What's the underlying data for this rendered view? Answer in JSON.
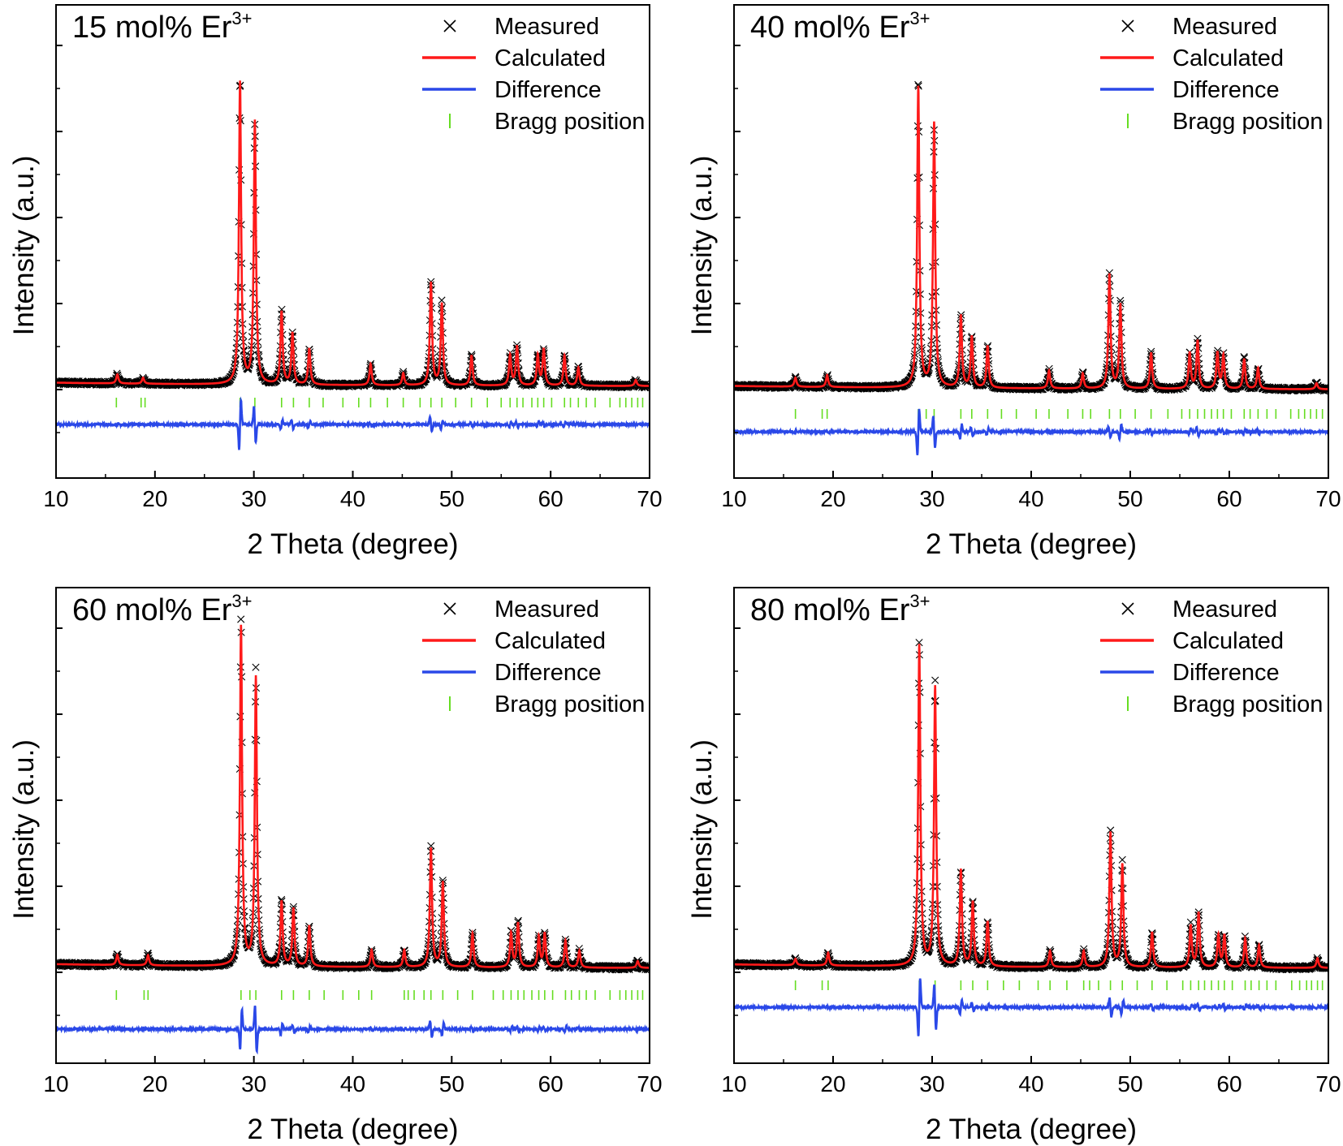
{
  "colors": {
    "measured": "#000000",
    "calculated": "#ff1a1a",
    "difference": "#2a48e8",
    "bragg": "#66dd22",
    "axis": "#000000"
  },
  "chart_data": [
    {
      "type": "line",
      "panel": "top-left",
      "title": "15 mol% Er",
      "title_sup": "3+",
      "xlabel": "2 Theta (degree)",
      "ylabel": "Intensity (a.u.)",
      "xlim": [
        10,
        70
      ],
      "xticks": [
        "10",
        "20",
        "30",
        "40",
        "50",
        "60",
        "70"
      ],
      "yticks_shown": false,
      "legend_position": "top-right",
      "legend": [
        "Measured",
        "Calculated",
        "Difference",
        "Bragg position"
      ],
      "series": [
        {
          "name": "Measured",
          "style": "markers-x"
        },
        {
          "name": "Calculated",
          "style": "line"
        },
        {
          "name": "Difference",
          "style": "line"
        },
        {
          "name": "Bragg position",
          "style": "ticks"
        }
      ],
      "peaks": [
        {
          "x": 16.2,
          "h": 0.03
        },
        {
          "x": 18.8,
          "h": 0.02
        },
        {
          "x": 28.6,
          "h": 1.0
        },
        {
          "x": 30.1,
          "h": 0.87
        },
        {
          "x": 32.8,
          "h": 0.24
        },
        {
          "x": 33.9,
          "h": 0.17
        },
        {
          "x": 35.6,
          "h": 0.12
        },
        {
          "x": 41.8,
          "h": 0.07
        },
        {
          "x": 45.1,
          "h": 0.04
        },
        {
          "x": 47.9,
          "h": 0.34
        },
        {
          "x": 49.0,
          "h": 0.27
        },
        {
          "x": 52.0,
          "h": 0.1
        },
        {
          "x": 55.9,
          "h": 0.1
        },
        {
          "x": 56.6,
          "h": 0.13
        },
        {
          "x": 58.7,
          "h": 0.1
        },
        {
          "x": 59.3,
          "h": 0.12
        },
        {
          "x": 61.4,
          "h": 0.1
        },
        {
          "x": 62.8,
          "h": 0.06
        },
        {
          "x": 68.6,
          "h": 0.02
        }
      ],
      "bragg_positions": [
        16.1,
        18.6,
        19.0,
        28.6,
        30.1,
        32.8,
        34.0,
        35.6,
        37.0,
        39.0,
        40.6,
        41.8,
        43.5,
        45.1,
        46.8,
        47.9,
        49.0,
        50.4,
        52.0,
        53.6,
        55.0,
        55.9,
        56.6,
        57.2,
        58.1,
        58.7,
        59.3,
        60.1,
        61.4,
        62.0,
        62.8,
        63.6,
        64.5,
        66.0,
        67.0,
        67.6,
        68.2,
        68.8,
        69.3
      ]
    },
    {
      "type": "line",
      "panel": "top-right",
      "title": "40 mol% Er",
      "title_sup": "3+",
      "xlabel": "2 Theta (degree)",
      "ylabel": "Intensity (a.u.)",
      "xlim": [
        10,
        70
      ],
      "xticks": [
        "10",
        "20",
        "30",
        "40",
        "50",
        "60",
        "70"
      ],
      "yticks_shown": false,
      "legend_position": "top-right",
      "legend": [
        "Measured",
        "Calculated",
        "Difference",
        "Bragg position"
      ],
      "series": [
        {
          "name": "Measured",
          "style": "markers-x"
        },
        {
          "name": "Calculated",
          "style": "line"
        },
        {
          "name": "Difference",
          "style": "line"
        },
        {
          "name": "Bragg position",
          "style": "ticks"
        }
      ],
      "peaks": [
        {
          "x": 16.2,
          "h": 0.03
        },
        {
          "x": 19.4,
          "h": 0.04
        },
        {
          "x": 28.6,
          "h": 1.0
        },
        {
          "x": 30.2,
          "h": 0.88
        },
        {
          "x": 32.9,
          "h": 0.24
        },
        {
          "x": 34.0,
          "h": 0.17
        },
        {
          "x": 35.6,
          "h": 0.14
        },
        {
          "x": 41.8,
          "h": 0.06
        },
        {
          "x": 45.2,
          "h": 0.05
        },
        {
          "x": 47.9,
          "h": 0.38
        },
        {
          "x": 49.0,
          "h": 0.28
        },
        {
          "x": 52.1,
          "h": 0.12
        },
        {
          "x": 56.0,
          "h": 0.12
        },
        {
          "x": 56.8,
          "h": 0.16
        },
        {
          "x": 58.8,
          "h": 0.12
        },
        {
          "x": 59.4,
          "h": 0.11
        },
        {
          "x": 61.5,
          "h": 0.1
        },
        {
          "x": 62.9,
          "h": 0.07
        },
        {
          "x": 68.8,
          "h": 0.02
        }
      ],
      "bragg_positions": [
        16.2,
        18.9,
        19.4,
        28.6,
        29.4,
        30.2,
        32.9,
        34.0,
        35.6,
        37.0,
        38.5,
        40.5,
        41.8,
        43.7,
        45.2,
        46.0,
        47.9,
        49.0,
        50.5,
        52.1,
        53.8,
        55.2,
        56.0,
        56.8,
        57.5,
        58.2,
        58.8,
        59.4,
        60.2,
        61.5,
        62.1,
        62.9,
        63.8,
        64.7,
        66.2,
        67.0,
        67.6,
        68.2,
        68.8,
        69.4
      ]
    },
    {
      "type": "line",
      "panel": "bottom-left",
      "title": "60 mol% Er",
      "title_sup": "3+",
      "xlabel": "2 Theta (degree)",
      "ylabel": "Intensity (a.u.)",
      "xlim": [
        10,
        70
      ],
      "xticks": [
        "10",
        "20",
        "30",
        "40",
        "50",
        "60",
        "70"
      ],
      "yticks_shown": false,
      "legend_position": "top-right",
      "legend": [
        "Measured",
        "Calculated",
        "Difference",
        "Bragg position"
      ],
      "series": [
        {
          "name": "Measured",
          "style": "markers-x"
        },
        {
          "name": "Calculated",
          "style": "line"
        },
        {
          "name": "Difference",
          "style": "line"
        },
        {
          "name": "Bragg position",
          "style": "ticks"
        }
      ],
      "peaks": [
        {
          "x": 16.2,
          "h": 0.03
        },
        {
          "x": 19.3,
          "h": 0.03
        },
        {
          "x": 28.7,
          "h": 1.0
        },
        {
          "x": 30.2,
          "h": 0.85
        },
        {
          "x": 32.8,
          "h": 0.19
        },
        {
          "x": 34.0,
          "h": 0.17
        },
        {
          "x": 35.6,
          "h": 0.12
        },
        {
          "x": 41.9,
          "h": 0.05
        },
        {
          "x": 45.2,
          "h": 0.05
        },
        {
          "x": 47.9,
          "h": 0.35
        },
        {
          "x": 49.1,
          "h": 0.25
        },
        {
          "x": 52.1,
          "h": 0.1
        },
        {
          "x": 56.0,
          "h": 0.1
        },
        {
          "x": 56.7,
          "h": 0.13
        },
        {
          "x": 58.8,
          "h": 0.09
        },
        {
          "x": 59.4,
          "h": 0.1
        },
        {
          "x": 61.5,
          "h": 0.08
        },
        {
          "x": 62.9,
          "h": 0.05
        },
        {
          "x": 68.8,
          "h": 0.02
        }
      ],
      "bragg_positions": [
        16.1,
        18.9,
        19.3,
        28.7,
        29.6,
        30.2,
        32.8,
        34.0,
        35.6,
        37.1,
        39.0,
        40.6,
        41.9,
        45.2,
        45.6,
        46.2,
        47.2,
        47.9,
        49.1,
        50.6,
        52.1,
        54.2,
        55.2,
        56.0,
        56.7,
        57.3,
        58.1,
        58.8,
        59.4,
        60.2,
        61.5,
        62.1,
        62.9,
        63.6,
        64.5,
        66.0,
        67.0,
        67.6,
        68.2,
        68.8,
        69.3
      ]
    },
    {
      "type": "line",
      "panel": "bottom-right",
      "title": "80 mol% Er",
      "title_sup": "3+",
      "xlabel": "2 Theta (degree)",
      "ylabel": "Intensity (a.u.)",
      "xlim": [
        10,
        70
      ],
      "xticks": [
        "10",
        "20",
        "30",
        "40",
        "50",
        "60",
        "70"
      ],
      "yticks_shown": false,
      "legend_position": "top-right",
      "legend": [
        "Measured",
        "Calculated",
        "Difference",
        "Bragg position"
      ],
      "series": [
        {
          "name": "Measured",
          "style": "markers-x"
        },
        {
          "name": "Calculated",
          "style": "line"
        },
        {
          "name": "Difference",
          "style": "line"
        },
        {
          "name": "Bragg position",
          "style": "ticks"
        }
      ],
      "peaks": [
        {
          "x": 16.2,
          "h": 0.02
        },
        {
          "x": 19.5,
          "h": 0.04
        },
        {
          "x": 28.7,
          "h": 1.0
        },
        {
          "x": 30.3,
          "h": 0.87
        },
        {
          "x": 32.9,
          "h": 0.3
        },
        {
          "x": 34.1,
          "h": 0.2
        },
        {
          "x": 35.6,
          "h": 0.14
        },
        {
          "x": 41.9,
          "h": 0.05
        },
        {
          "x": 45.3,
          "h": 0.05
        },
        {
          "x": 48.0,
          "h": 0.42
        },
        {
          "x": 49.2,
          "h": 0.32
        },
        {
          "x": 52.2,
          "h": 0.11
        },
        {
          "x": 56.1,
          "h": 0.13
        },
        {
          "x": 56.9,
          "h": 0.17
        },
        {
          "x": 58.9,
          "h": 0.1
        },
        {
          "x": 59.5,
          "h": 0.1
        },
        {
          "x": 61.6,
          "h": 0.09
        },
        {
          "x": 63.0,
          "h": 0.07
        },
        {
          "x": 68.9,
          "h": 0.03
        }
      ],
      "bragg_positions": [
        16.2,
        18.9,
        19.5,
        28.7,
        30.3,
        32.9,
        34.1,
        35.6,
        37.2,
        38.8,
        40.7,
        41.9,
        43.6,
        45.3,
        45.9,
        46.8,
        48.0,
        49.2,
        50.7,
        52.2,
        53.7,
        55.3,
        56.1,
        56.9,
        57.5,
        58.2,
        58.9,
        59.5,
        60.3,
        61.6,
        62.2,
        63.0,
        63.8,
        64.7,
        66.3,
        67.1,
        67.8,
        68.3,
        68.9,
        69.4
      ]
    }
  ]
}
